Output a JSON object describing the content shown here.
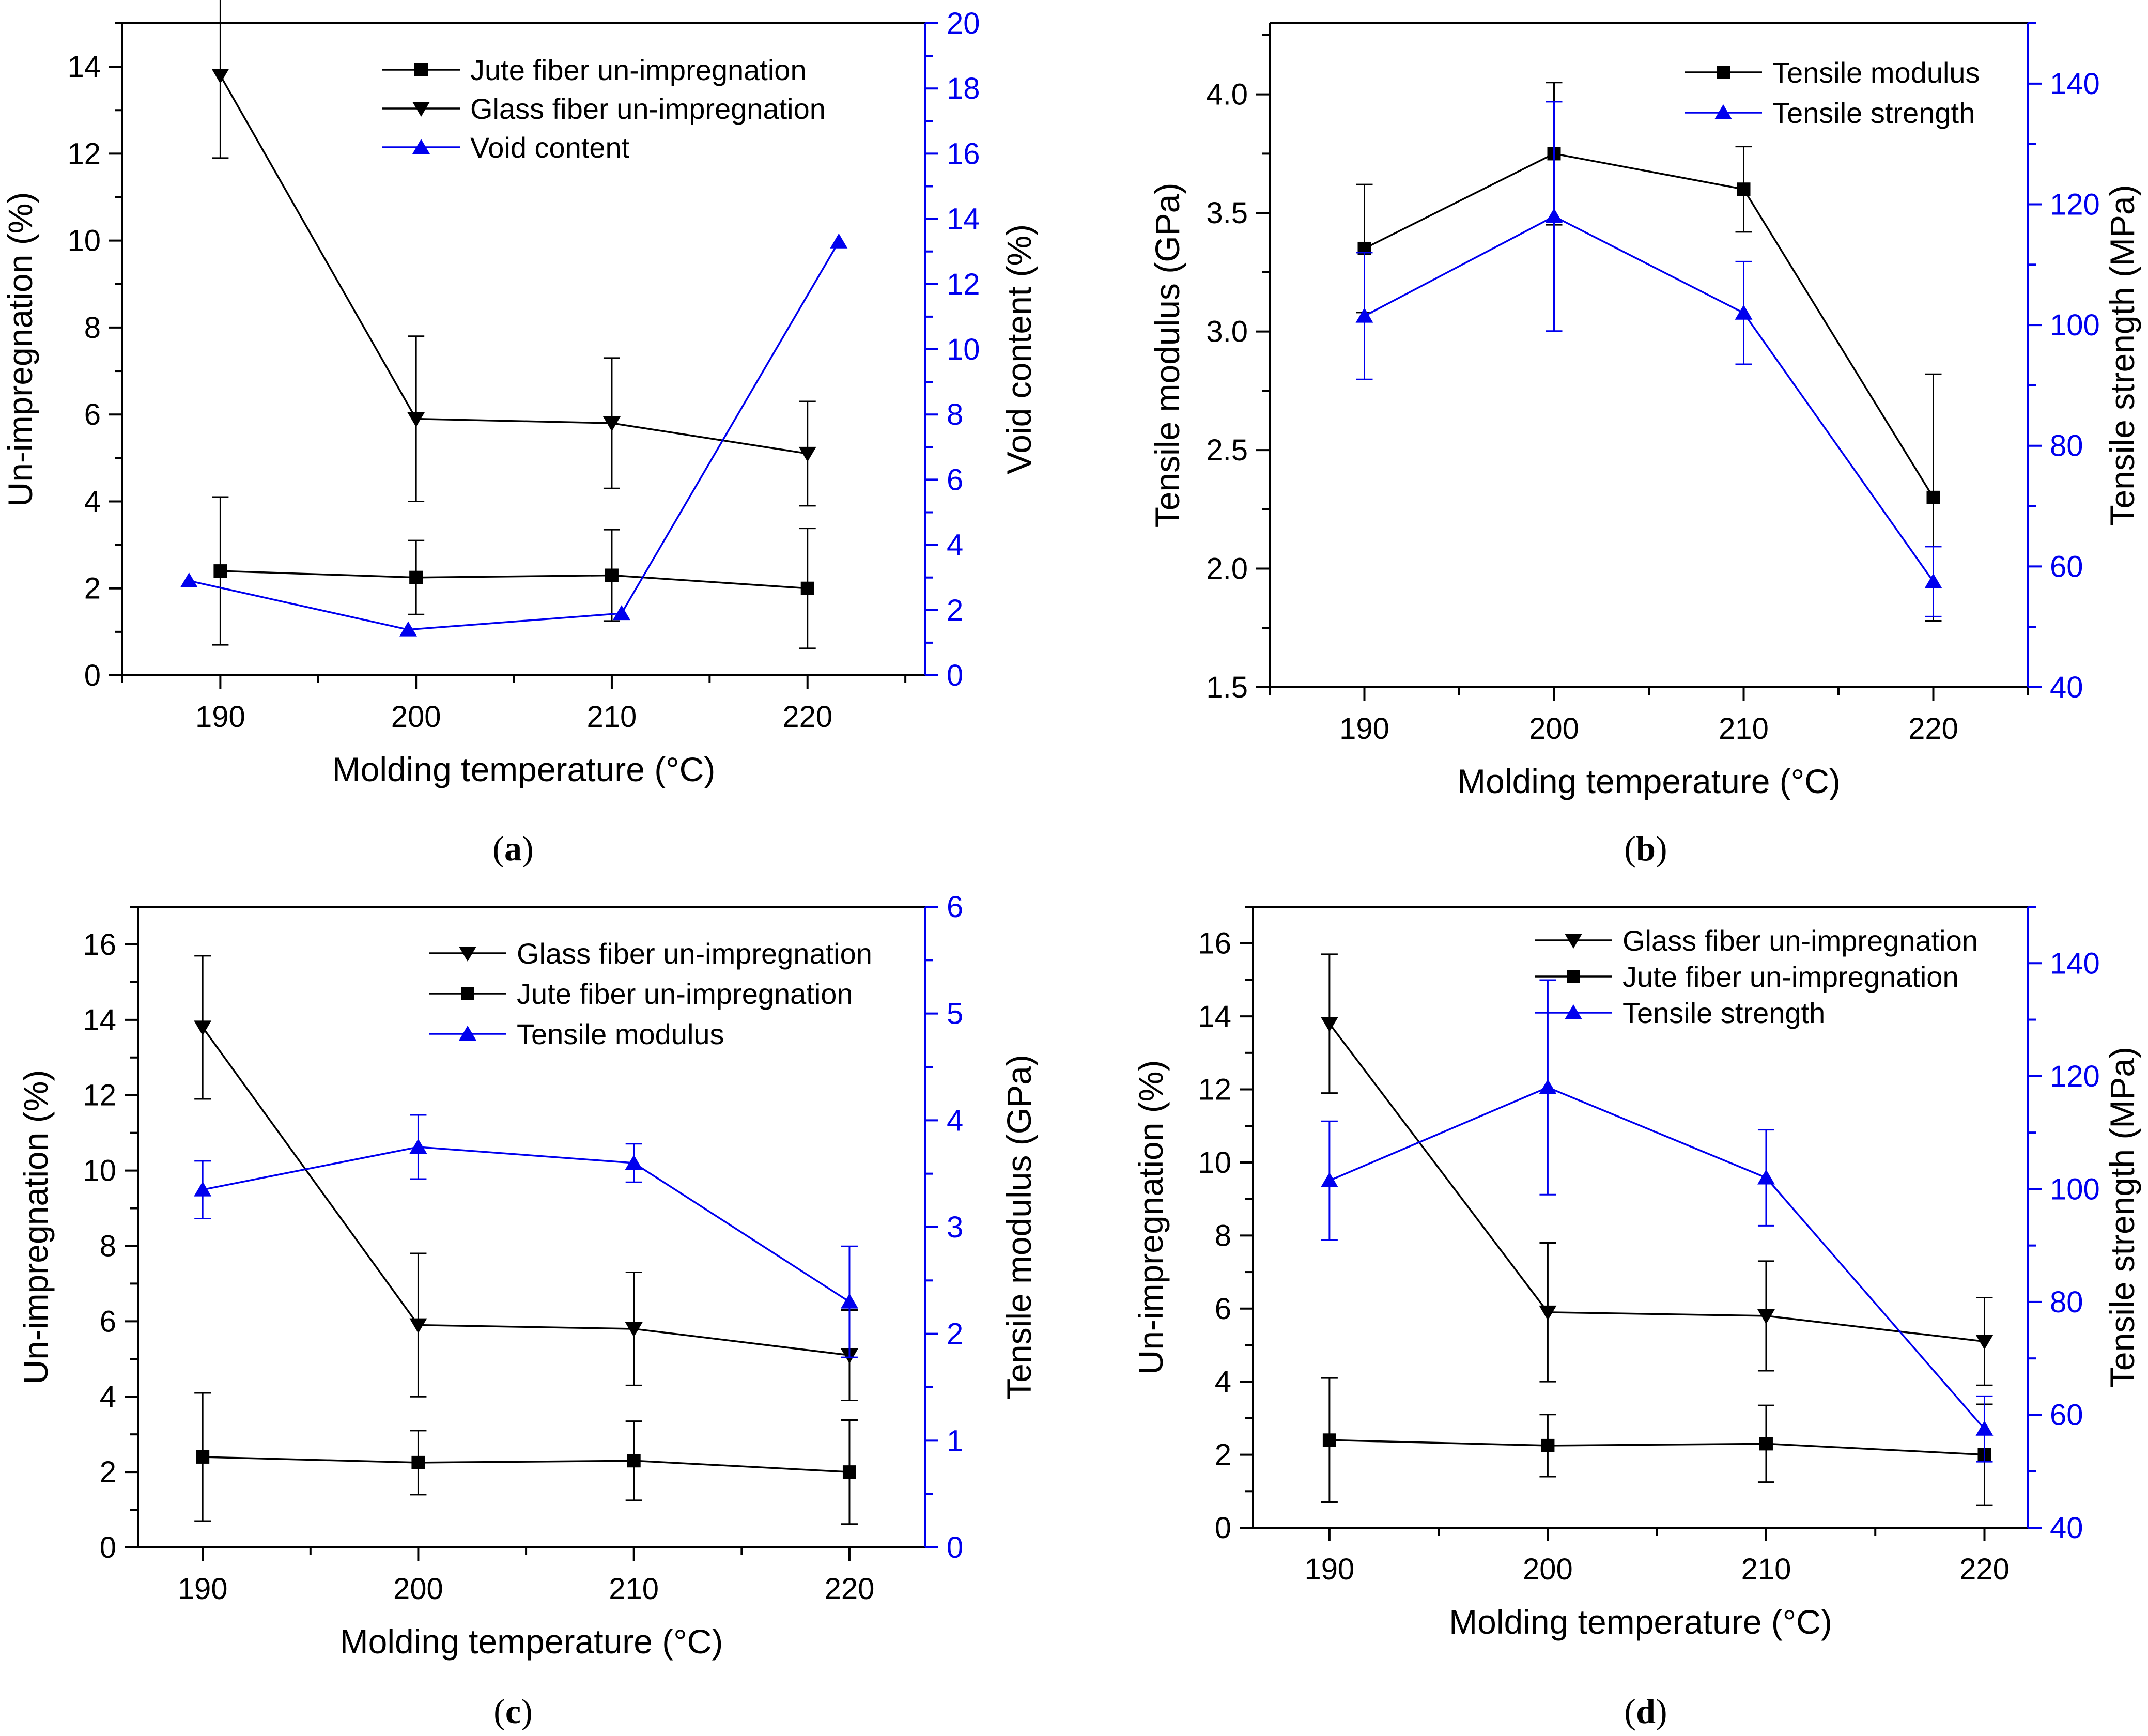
{
  "figure": {
    "xlabel_common": "Molding temperature (°C)"
  },
  "chart_data": [
    {
      "id": "a",
      "type": "line",
      "caption": "a",
      "xlabel": "Molding temperature (°C)",
      "ylabel": "Un-impregnation (%)",
      "ylabel_right": "Void content (%)",
      "xlim": [
        185,
        226
      ],
      "ylim": [
        0,
        15
      ],
      "ylim_right": [
        0,
        20
      ],
      "xticks": [
        190,
        200,
        210,
        220
      ],
      "yticks": [
        0,
        2,
        4,
        6,
        8,
        10,
        12,
        14
      ],
      "yticks_right": [
        0,
        2,
        4,
        6,
        8,
        10,
        12,
        14,
        16,
        18,
        20
      ],
      "legend": "top-right",
      "series": [
        {
          "name": "Jute fiber un-impregnation",
          "axis": "left",
          "color": "#000000",
          "marker": "square",
          "x": [
            190,
            200,
            210,
            220
          ],
          "values": [
            2.4,
            2.25,
            2.3,
            2.0
          ],
          "err": [
            1.7,
            0.85,
            1.05,
            1.38
          ]
        },
        {
          "name": "Glass fiber un-impregnation",
          "axis": "left",
          "color": "#000000",
          "marker": "tri-down",
          "x": [
            190,
            200,
            210,
            220
          ],
          "values": [
            13.8,
            5.9,
            5.8,
            5.1
          ],
          "err": [
            1.9,
            1.9,
            1.5,
            1.2
          ]
        },
        {
          "name": "Void content",
          "axis": "right",
          "color": "#0000ee",
          "marker": "tri-up",
          "x": [
            188.4,
            199.6,
            210.5,
            221.6
          ],
          "values": [
            2.9,
            1.4,
            1.9,
            13.3
          ],
          "err": [
            0,
            0,
            0,
            0
          ]
        }
      ]
    },
    {
      "id": "b",
      "type": "line",
      "caption": "b",
      "xlabel": "Molding temperature (°C)",
      "ylabel": "Tensile modulus (GPa)",
      "ylabel_right": "Tensile strength (MPa)",
      "xlim": [
        185,
        225
      ],
      "ylim": [
        1.5,
        4.3
      ],
      "ylim_right": [
        40,
        150
      ],
      "xticks": [
        190,
        200,
        210,
        220
      ],
      "yticks": [
        1.5,
        2.0,
        2.5,
        3.0,
        3.5,
        4.0
      ],
      "ytick_labels": [
        "1.5",
        "2.0",
        "2.5",
        "3.0",
        "3.5",
        "4.0"
      ],
      "yticks_right": [
        40,
        60,
        80,
        100,
        120,
        140
      ],
      "legend": "top-right",
      "series": [
        {
          "name": "Tensile modulus",
          "axis": "left",
          "color": "#000000",
          "marker": "square",
          "x": [
            190,
            200,
            210,
            220
          ],
          "values": [
            3.35,
            3.75,
            3.6,
            2.3
          ],
          "err": [
            0.27,
            0.3,
            0.18,
            0.52
          ]
        },
        {
          "name": "Tensile strength",
          "axis": "right",
          "color": "#0000ee",
          "marker": "tri-up",
          "x": [
            190,
            200,
            210,
            220
          ],
          "values": [
            101.5,
            118,
            102,
            57.5
          ],
          "err": [
            10.5,
            19,
            8.5,
            5.8
          ]
        }
      ]
    },
    {
      "id": "c",
      "type": "line",
      "caption": "c",
      "xlabel": "Molding temperature (°C)",
      "ylabel": "Un-impregnation (%)",
      "ylabel_right": "Tensile modulus (GPa)",
      "xlim": [
        187,
        223.5
      ],
      "ylim": [
        0,
        17
      ],
      "ylim_right": [
        0,
        6
      ],
      "xticks": [
        190,
        200,
        210,
        220
      ],
      "yticks": [
        0,
        2,
        4,
        6,
        8,
        10,
        12,
        14,
        16
      ],
      "yticks_right": [
        0,
        1,
        2,
        3,
        4,
        5,
        6
      ],
      "legend": "top-right",
      "series": [
        {
          "name": "Glass fiber un-impregnation",
          "axis": "left",
          "color": "#000000",
          "marker": "tri-down",
          "x": [
            190,
            200,
            210,
            220
          ],
          "values": [
            13.8,
            5.9,
            5.8,
            5.1
          ],
          "err": [
            1.9,
            1.9,
            1.5,
            1.2
          ]
        },
        {
          "name": "Jute fiber un-impregnation",
          "axis": "left",
          "color": "#000000",
          "marker": "square",
          "x": [
            190,
            200,
            210,
            220
          ],
          "values": [
            2.4,
            2.25,
            2.3,
            2.0
          ],
          "err": [
            1.7,
            0.85,
            1.05,
            1.38
          ]
        },
        {
          "name": "Tensile modulus",
          "axis": "right",
          "color": "#0000ee",
          "marker": "tri-up",
          "x": [
            190,
            200,
            210,
            220
          ],
          "values": [
            3.35,
            3.75,
            3.6,
            2.3
          ],
          "err": [
            0.27,
            0.3,
            0.18,
            0.52
          ]
        }
      ]
    },
    {
      "id": "d",
      "type": "line",
      "caption": "d",
      "xlabel": "Molding temperature (°C)",
      "ylabel": "Un-impregnation (%)",
      "ylabel_right": "Tensile strength (MPa)",
      "xlim": [
        186.5,
        222
      ],
      "ylim": [
        0,
        17
      ],
      "ylim_right": [
        40,
        150
      ],
      "xticks": [
        190,
        200,
        210,
        220
      ],
      "yticks": [
        0,
        2,
        4,
        6,
        8,
        10,
        12,
        14,
        16
      ],
      "yticks_right": [
        40,
        60,
        80,
        100,
        120,
        140
      ],
      "legend": "top-right",
      "series": [
        {
          "name": "Glass fiber un-impregnation",
          "axis": "left",
          "color": "#000000",
          "marker": "tri-down",
          "x": [
            190,
            200,
            210,
            220
          ],
          "values": [
            13.8,
            5.9,
            5.8,
            5.1
          ],
          "err": [
            1.9,
            1.9,
            1.5,
            1.2
          ]
        },
        {
          "name": "Jute fiber un-impregnation",
          "axis": "left",
          "color": "#000000",
          "marker": "square",
          "x": [
            190,
            200,
            210,
            220
          ],
          "values": [
            2.4,
            2.25,
            2.3,
            2.0
          ],
          "err": [
            1.7,
            0.85,
            1.05,
            1.38
          ]
        },
        {
          "name": "Tensile strength",
          "axis": "right",
          "color": "#0000ee",
          "marker": "tri-up",
          "x": [
            190,
            200,
            210,
            220
          ],
          "values": [
            101.5,
            118,
            102,
            57.5
          ],
          "err": [
            10.5,
            19,
            8.5,
            5.8
          ]
        }
      ]
    }
  ]
}
